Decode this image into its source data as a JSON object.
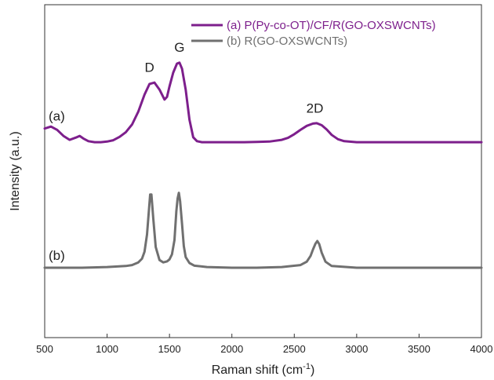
{
  "chart_data": {
    "type": "line",
    "xlabel": "Raman shift (cm",
    "xlabel_sup": "-1",
    "xlabel_tail": ")",
    "ylabel": "Intensity (a.u.)",
    "xlim": [
      500,
      4000
    ],
    "ylim": [
      0,
      1
    ],
    "x_ticks": [
      500,
      1000,
      1500,
      2000,
      2500,
      3000,
      3500,
      4000
    ],
    "y_ticks_shown": false,
    "grid": false,
    "legend_position": "top-right",
    "series": [
      {
        "name": "(a) P(Py-co-OT)/CF/R(GO-OXSWCNTs)",
        "color": "#7d1f8c",
        "label": "(a)",
        "x": [
          500,
          550,
          600,
          650,
          700,
          750,
          780,
          810,
          850,
          900,
          950,
          1000,
          1050,
          1100,
          1150,
          1200,
          1250,
          1300,
          1340,
          1380,
          1420,
          1460,
          1480,
          1500,
          1530,
          1560,
          1580,
          1600,
          1630,
          1660,
          1690,
          1720,
          1760,
          1800,
          1900,
          2000,
          2100,
          2200,
          2300,
          2400,
          2450,
          2500,
          2550,
          2600,
          2650,
          2680,
          2720,
          2760,
          2800,
          2850,
          2900,
          3000,
          3200,
          3500,
          4000
        ],
        "y": [
          0.628,
          0.634,
          0.624,
          0.606,
          0.594,
          0.601,
          0.606,
          0.598,
          0.59,
          0.587,
          0.587,
          0.589,
          0.593,
          0.603,
          0.617,
          0.64,
          0.679,
          0.73,
          0.762,
          0.766,
          0.745,
          0.715,
          0.723,
          0.754,
          0.796,
          0.823,
          0.826,
          0.808,
          0.745,
          0.655,
          0.602,
          0.59,
          0.587,
          0.587,
          0.587,
          0.587,
          0.587,
          0.588,
          0.589,
          0.594,
          0.6,
          0.611,
          0.624,
          0.636,
          0.643,
          0.644,
          0.638,
          0.625,
          0.609,
          0.596,
          0.59,
          0.587,
          0.587,
          0.587,
          0.587
        ]
      },
      {
        "name": "(b) R(GO-OXSWCNTs)",
        "color": "#707070",
        "label": "(b)",
        "x": [
          500,
          800,
          1000,
          1150,
          1200,
          1250,
          1280,
          1300,
          1320,
          1335,
          1345,
          1355,
          1370,
          1390,
          1420,
          1450,
          1480,
          1500,
          1520,
          1540,
          1555,
          1565,
          1575,
          1585,
          1600,
          1615,
          1630,
          1660,
          1700,
          1800,
          2000,
          2200,
          2400,
          2550,
          2600,
          2630,
          2650,
          2670,
          2685,
          2700,
          2720,
          2750,
          2800,
          3000,
          3500,
          4000
        ],
        "y": [
          0.21,
          0.21,
          0.212,
          0.215,
          0.218,
          0.226,
          0.237,
          0.258,
          0.31,
          0.382,
          0.43,
          0.43,
          0.357,
          0.272,
          0.233,
          0.226,
          0.229,
          0.235,
          0.25,
          0.293,
          0.38,
          0.418,
          0.435,
          0.41,
          0.343,
          0.275,
          0.242,
          0.224,
          0.216,
          0.212,
          0.21,
          0.21,
          0.212,
          0.218,
          0.228,
          0.245,
          0.265,
          0.282,
          0.29,
          0.281,
          0.255,
          0.228,
          0.215,
          0.21,
          0.21,
          0.21
        ]
      }
    ],
    "annotations": [
      {
        "text": "D",
        "x": 1340,
        "y": 0.775
      },
      {
        "text": "G",
        "x": 1580,
        "y": 0.835
      },
      {
        "text": "2D",
        "x": 2665,
        "y": 0.652
      }
    ]
  }
}
